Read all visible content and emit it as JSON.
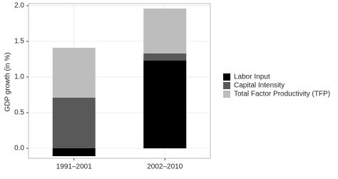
{
  "chart_data": {
    "type": "bar",
    "stacked": true,
    "y_label": "GDP growth (in %)",
    "categories": [
      "1991–2001",
      "2002–2010"
    ],
    "series": [
      {
        "name": "Labor Input",
        "color": "#000000",
        "values": [
          -0.11,
          1.23
        ]
      },
      {
        "name": "Capital Intensity",
        "color": "#595959",
        "values": [
          0.71,
          0.1
        ]
      },
      {
        "name": "Total Factor Productivity (TFP)",
        "color": "#bdbdbd",
        "values": [
          0.7,
          0.63
        ]
      }
    ],
    "ylim": [
      -0.14,
      2.03
    ],
    "yticks": [
      {
        "value": 0,
        "label": "0.0"
      },
      {
        "value": 0.5,
        "label": "0.5"
      },
      {
        "value": 1,
        "label": "1.0"
      },
      {
        "value": 1.5,
        "label": "1.5"
      },
      {
        "value": 2,
        "label": "2.0"
      }
    ],
    "grid": true,
    "legend": "right"
  }
}
